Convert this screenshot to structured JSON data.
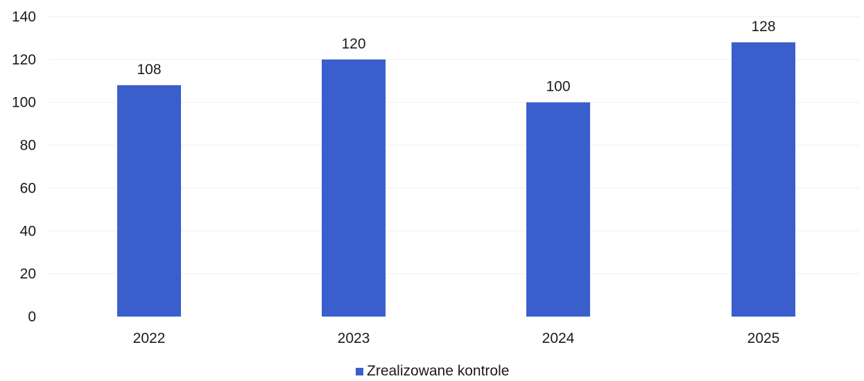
{
  "chart_data": {
    "type": "bar",
    "categories": [
      "2022",
      "2023",
      "2024",
      "2025"
    ],
    "series": [
      {
        "name": "Zrealizowane kontrole",
        "values": [
          108,
          120,
          100,
          128
        ],
        "color": "#3a5fcd"
      }
    ],
    "data_labels": [
      "108",
      "120",
      "100",
      "128"
    ],
    "ylim": [
      0,
      140
    ],
    "yticks": [
      0,
      20,
      40,
      60,
      80,
      100,
      120,
      140
    ],
    "ytick_labels": [
      "0",
      "20",
      "40",
      "60",
      "80",
      "100",
      "120",
      "140"
    ],
    "grid": true,
    "legend": {
      "position": "bottom",
      "label": "Zrealizowane kontrole"
    },
    "title": "",
    "xlabel": "",
    "ylabel": ""
  }
}
